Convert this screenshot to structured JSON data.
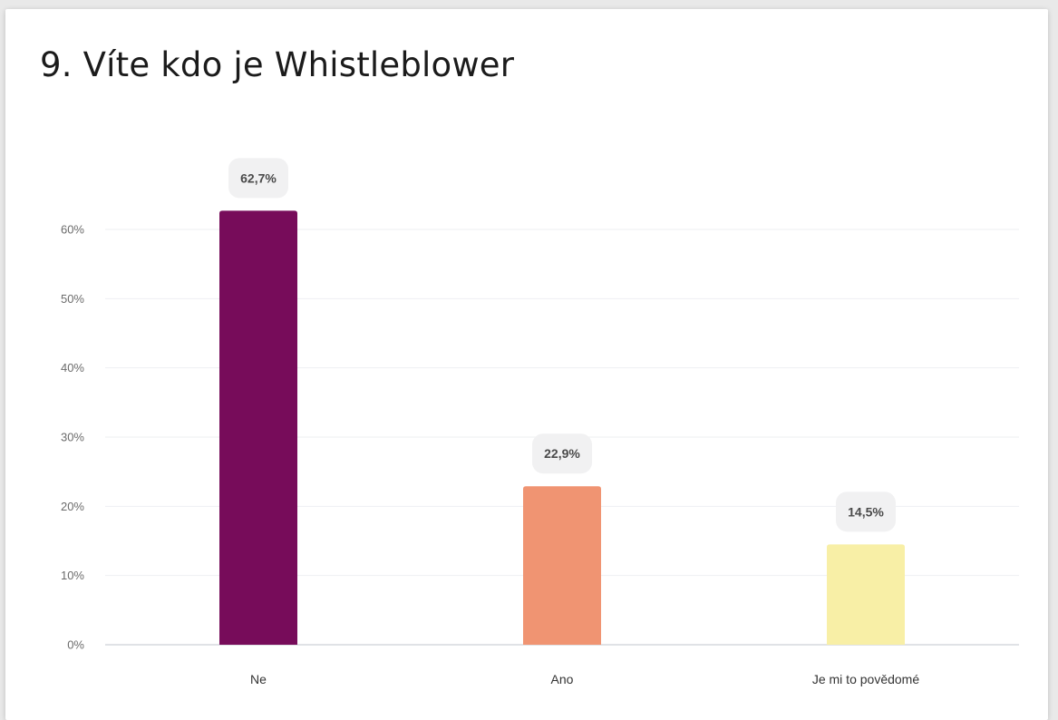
{
  "title": "9. Víte kdo je Whistleblower",
  "chart_data": {
    "type": "bar",
    "title": "9. Víte kdo je Whistleblower",
    "xlabel": "",
    "ylabel": "",
    "categories": [
      "Ne",
      "Ano",
      "Je mi to povědomé"
    ],
    "values": [
      62.7,
      22.9,
      14.5
    ],
    "data_labels": [
      "62,7%",
      "22,9%",
      "14,5%"
    ],
    "colors": [
      "#770c5a",
      "#f09472",
      "#f8efa6"
    ],
    "ylim": [
      0,
      60
    ],
    "yticks": [
      0,
      10,
      20,
      30,
      40,
      50,
      60
    ],
    "ytick_labels": [
      "0%",
      "10%",
      "20%",
      "30%",
      "40%",
      "50%",
      "60%"
    ],
    "grid": true,
    "legend": "none"
  }
}
